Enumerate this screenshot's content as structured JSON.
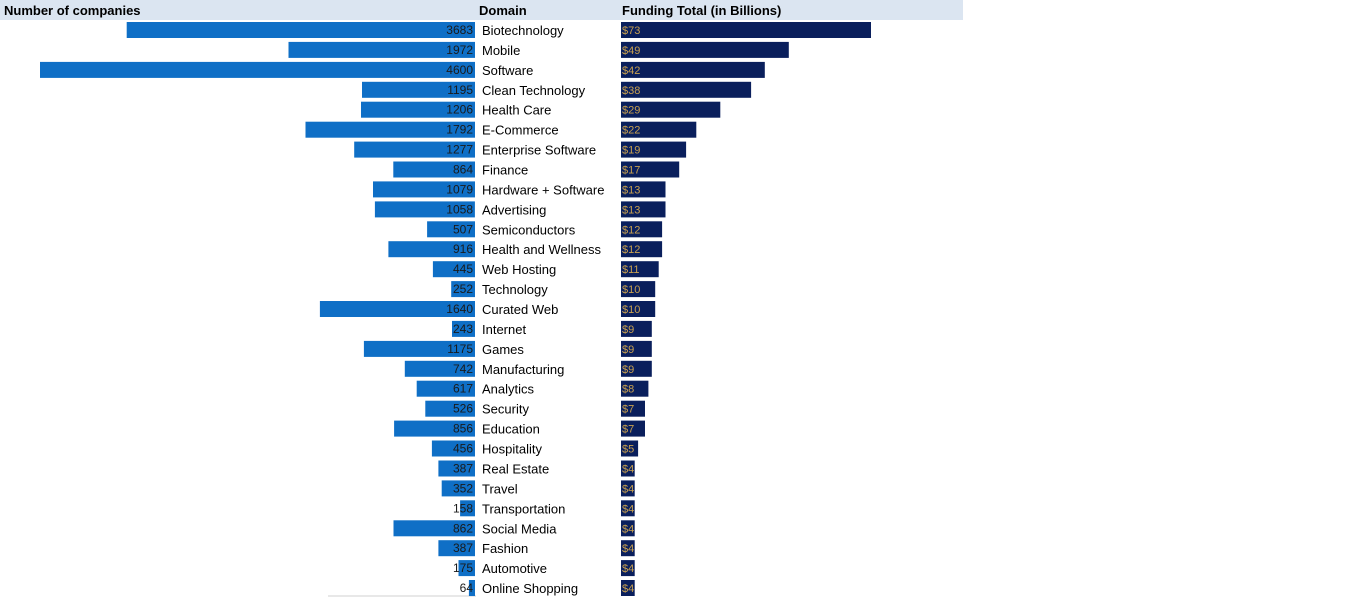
{
  "headers": {
    "left": "Number of companies",
    "domain": "Domain",
    "right": "Funding Total (in Billions)"
  },
  "colors": {
    "count_bar": "#0f6fc6",
    "funding_bar": "#0a1f5c",
    "funding_label": "#c8a050",
    "header_band": "#dbe5f1"
  },
  "chart_data": {
    "type": "bar",
    "orientation": "horizontal",
    "categories": [
      "Biotechnology",
      "Mobile",
      "Software",
      "Clean Technology",
      "Health Care",
      "E-Commerce",
      "Enterprise Software",
      "Finance",
      "Hardware + Software",
      "Advertising",
      "Semiconductors",
      "Health and Wellness",
      "Web Hosting",
      "Technology",
      "Curated Web",
      "Internet",
      "Games",
      "Manufacturing",
      "Analytics",
      "Security",
      "Education",
      "Hospitality",
      "Real Estate",
      "Travel",
      "Transportation",
      "Social Media",
      "Fashion",
      "Automotive",
      "Online Shopping"
    ],
    "series": [
      {
        "name": "Number of companies",
        "values": [
          3683,
          1972,
          4600,
          1195,
          1206,
          1792,
          1277,
          864,
          1079,
          1058,
          507,
          916,
          445,
          252,
          1640,
          243,
          1175,
          742,
          617,
          526,
          856,
          456,
          387,
          352,
          158,
          862,
          387,
          175,
          64
        ],
        "labels": [
          "3683",
          "1972",
          "4600",
          "1195",
          "1206",
          "1792",
          "1277",
          "864",
          "1079",
          "1058",
          "507",
          "916",
          "445",
          "252",
          "1640",
          "243",
          "1175",
          "742",
          "617",
          "526",
          "856",
          "456",
          "387",
          "352",
          "158",
          "862",
          "387",
          "175",
          "64"
        ]
      },
      {
        "name": "Funding Total (in Billions)",
        "values": [
          73,
          49,
          42,
          38,
          29,
          22,
          19,
          17,
          13,
          13,
          12,
          12,
          11,
          10,
          10,
          9,
          9,
          9,
          8,
          7,
          7,
          5,
          4,
          4,
          4,
          4,
          4,
          4,
          4
        ],
        "labels": [
          "$73",
          "$49",
          "$42",
          "$38",
          "$29",
          "$22",
          "$19",
          "$17",
          "$13",
          "$13",
          "$12",
          "$12",
          "$11",
          "$10",
          "$10",
          "$9",
          "$9",
          "$9",
          "$8",
          "$7",
          "$7",
          "$5",
          "$4",
          "$4",
          "$4",
          "$4",
          "$4",
          "$4",
          "$4"
        ]
      }
    ]
  }
}
